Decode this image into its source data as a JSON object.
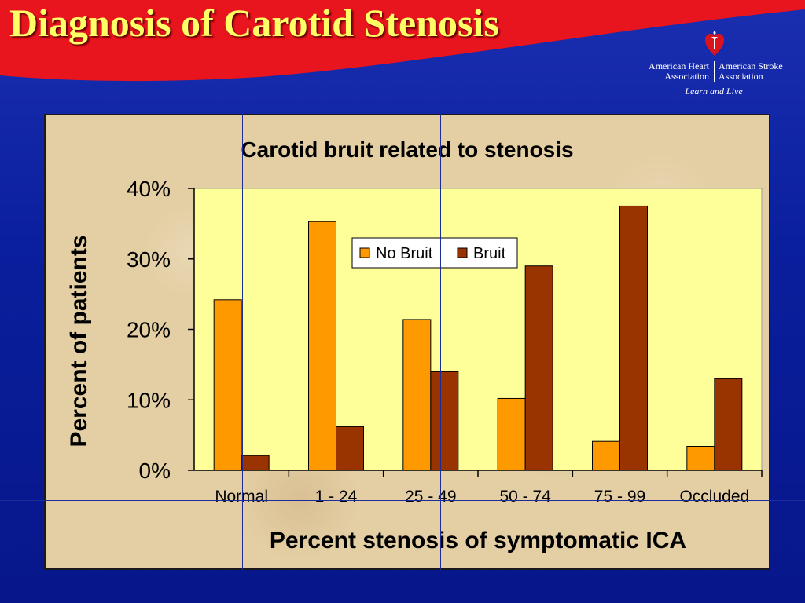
{
  "slide": {
    "title": "Diagnosis of Carotid Stenosis"
  },
  "logo": {
    "org_left_line1": "American Heart",
    "org_left_line2": "Association",
    "org_right_line1": "American Stroke",
    "org_right_line2": "Association",
    "tagline": "Learn and Live",
    "icon": "heart-torch-icon"
  },
  "colors": {
    "banner_red": "#e8141e",
    "background_blue": "#0a1f9e",
    "title_yellow": "#ffff66",
    "plot_area": "#ffff99",
    "no_bruit": "#ff9900",
    "bruit": "#993300"
  },
  "chart_data": {
    "type": "bar",
    "title": "Carotid bruit related to stenosis",
    "xlabel": "Percent stenosis of symptomatic ICA",
    "ylabel": "Percent of patients",
    "categories": [
      "Normal",
      "1 - 24",
      "25 - 49",
      "50 - 74",
      "75 - 99",
      "Occluded"
    ],
    "series": [
      {
        "name": "No Bruit",
        "color": "#ff9900",
        "values": [
          24.2,
          35.3,
          21.4,
          10.2,
          4.1,
          3.4
        ]
      },
      {
        "name": "Bruit",
        "color": "#993300",
        "values": [
          2.1,
          6.2,
          14.0,
          29.0,
          37.5,
          13.0
        ]
      }
    ],
    "ylim": [
      0,
      40
    ],
    "yticks": [
      0,
      10,
      20,
      30,
      40
    ],
    "ytick_labels": [
      "0%",
      "10%",
      "20%",
      "30%",
      "40%"
    ],
    "grid": false,
    "legend": "top-center"
  }
}
